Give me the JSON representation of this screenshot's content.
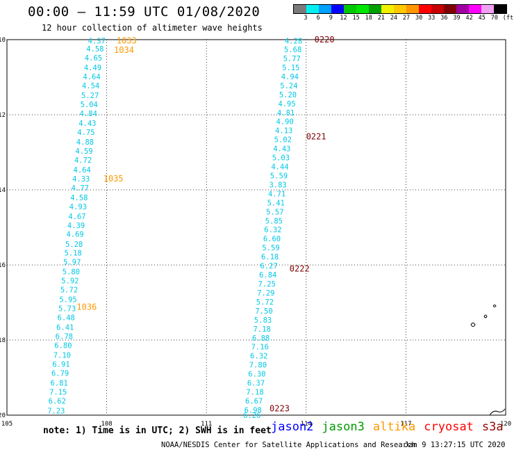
{
  "header": {
    "title": "00:00 – 11:59 UTC 01/08/2020",
    "subtitle": "12 hour collection of altimeter wave heights"
  },
  "colorbar": {
    "colors": [
      "#7a7a7a",
      "#00f0f0",
      "#00a0ff",
      "#0000ff",
      "#00c800",
      "#00e600",
      "#00a000",
      "#f0f000",
      "#ffc800",
      "#ff9600",
      "#ff0000",
      "#c80000",
      "#800000",
      "#a000a0",
      "#ff00ff",
      "#f0a0f0",
      "#000000"
    ],
    "labels": [
      "3",
      "6",
      "9",
      "12",
      "15",
      "18",
      "21",
      "24",
      "27",
      "30",
      "33",
      "36",
      "39",
      "42",
      "45",
      "70",
      "(ft)"
    ]
  },
  "chart_data": {
    "type": "scatter",
    "xlim": [
      105,
      120
    ],
    "ylim": [
      -20,
      -10
    ],
    "xticks": [
      105,
      108,
      111,
      114,
      117,
      120
    ],
    "yticks": [
      -10,
      -12,
      -14,
      -16,
      -18,
      -20
    ],
    "xtick_labels": [
      "105",
      "108",
      "111",
      "114",
      "117",
      "120"
    ],
    "ytick_labels": [
      "-10",
      "-12",
      "-14",
      "-16",
      "-18",
      "-20"
    ],
    "grid": true,
    "series": [
      {
        "name": "altika",
        "color": "#00c8e6",
        "label_color": "#ff9900",
        "points": [
          {
            "x": 107.7,
            "y": -10.03,
            "v": "4.37"
          },
          {
            "x": 107.65,
            "y": -10.24,
            "v": "4.58"
          },
          {
            "x": 107.6,
            "y": -10.48,
            "v": "4.65"
          },
          {
            "x": 107.58,
            "y": -10.74,
            "v": "4.49"
          },
          {
            "x": 107.55,
            "y": -10.98,
            "v": "4.64"
          },
          {
            "x": 107.52,
            "y": -11.22,
            "v": "4.54"
          },
          {
            "x": 107.5,
            "y": -11.48,
            "v": "5.27"
          },
          {
            "x": 107.47,
            "y": -11.72,
            "v": "5.04"
          },
          {
            "x": 107.45,
            "y": -11.96,
            "v": "4.84"
          },
          {
            "x": 107.42,
            "y": -12.22,
            "v": "4.43"
          },
          {
            "x": 107.38,
            "y": -12.46,
            "v": "4.75"
          },
          {
            "x": 107.35,
            "y": -12.72,
            "v": "4.88"
          },
          {
            "x": 107.32,
            "y": -12.96,
            "v": "4.59"
          },
          {
            "x": 107.29,
            "y": -13.2,
            "v": "4.72"
          },
          {
            "x": 107.26,
            "y": -13.46,
            "v": "4.64"
          },
          {
            "x": 107.23,
            "y": -13.7,
            "v": "4.33"
          },
          {
            "x": 107.2,
            "y": -13.94,
            "v": "4.77"
          },
          {
            "x": 107.17,
            "y": -14.2,
            "v": "4.58"
          },
          {
            "x": 107.14,
            "y": -14.44,
            "v": "4.93"
          },
          {
            "x": 107.11,
            "y": -14.7,
            "v": "4.67"
          },
          {
            "x": 107.08,
            "y": -14.94,
            "v": "4.39"
          },
          {
            "x": 107.05,
            "y": -15.18,
            "v": "4.69"
          },
          {
            "x": 107.02,
            "y": -15.44,
            "v": "5.28"
          },
          {
            "x": 106.99,
            "y": -15.68,
            "v": "5.18"
          },
          {
            "x": 106.96,
            "y": -15.92,
            "v": "5.97"
          },
          {
            "x": 106.93,
            "y": -16.18,
            "v": "5.80"
          },
          {
            "x": 106.9,
            "y": -16.42,
            "v": "5.92"
          },
          {
            "x": 106.87,
            "y": -16.66,
            "v": "5.72"
          },
          {
            "x": 106.84,
            "y": -16.92,
            "v": "5.95"
          },
          {
            "x": 106.81,
            "y": -17.16,
            "v": "5.73"
          },
          {
            "x": 106.78,
            "y": -17.4,
            "v": "6.48"
          },
          {
            "x": 106.75,
            "y": -17.66,
            "v": "6.41"
          },
          {
            "x": 106.72,
            "y": -17.9,
            "v": "6.78"
          },
          {
            "x": 106.69,
            "y": -18.14,
            "v": "6.80"
          },
          {
            "x": 106.66,
            "y": -18.4,
            "v": "7.10"
          },
          {
            "x": 106.63,
            "y": -18.64,
            "v": "6.91"
          },
          {
            "x": 106.6,
            "y": -18.88,
            "v": "6.79"
          },
          {
            "x": 106.57,
            "y": -19.14,
            "v": "6.81"
          },
          {
            "x": 106.54,
            "y": -19.38,
            "v": "7.15"
          },
          {
            "x": 106.51,
            "y": -19.62,
            "v": "6.62"
          },
          {
            "x": 106.48,
            "y": -19.88,
            "v": "7.23"
          }
        ],
        "time_labels": [
          {
            "x": 108.6,
            "y": -10.03,
            "t": "1033"
          },
          {
            "x": 108.52,
            "y": -10.28,
            "t": "1034"
          },
          {
            "x": 108.2,
            "y": -13.7,
            "t": "1035"
          },
          {
            "x": 107.4,
            "y": -17.12,
            "t": "1036"
          }
        ]
      },
      {
        "name": "cryosat",
        "color": "#00c8e6",
        "label_color": "#800000",
        "points": [
          {
            "x": 113.62,
            "y": -10.03,
            "v": "4.28"
          },
          {
            "x": 113.6,
            "y": -10.26,
            "v": "5.68"
          },
          {
            "x": 113.57,
            "y": -10.5,
            "v": "5.77"
          },
          {
            "x": 113.54,
            "y": -10.74,
            "v": "5.15"
          },
          {
            "x": 113.51,
            "y": -10.98,
            "v": "4.94"
          },
          {
            "x": 113.48,
            "y": -11.22,
            "v": "5.24"
          },
          {
            "x": 113.45,
            "y": -11.46,
            "v": "5.20"
          },
          {
            "x": 113.42,
            "y": -11.7,
            "v": "4.95"
          },
          {
            "x": 113.39,
            "y": -11.94,
            "v": "4.81"
          },
          {
            "x": 113.36,
            "y": -12.18,
            "v": "4.90"
          },
          {
            "x": 113.33,
            "y": -12.42,
            "v": "4.13"
          },
          {
            "x": 113.3,
            "y": -12.66,
            "v": "5.02"
          },
          {
            "x": 113.27,
            "y": -12.9,
            "v": "4.43"
          },
          {
            "x": 113.24,
            "y": -13.14,
            "v": "5.03"
          },
          {
            "x": 113.21,
            "y": -13.38,
            "v": "4.44"
          },
          {
            "x": 113.18,
            "y": -13.62,
            "v": "5.59"
          },
          {
            "x": 113.15,
            "y": -13.86,
            "v": "3.83"
          },
          {
            "x": 113.12,
            "y": -14.1,
            "v": "4.71"
          },
          {
            "x": 113.09,
            "y": -14.34,
            "v": "5.41"
          },
          {
            "x": 113.06,
            "y": -14.58,
            "v": "5.57"
          },
          {
            "x": 113.03,
            "y": -14.82,
            "v": "5.85"
          },
          {
            "x": 113.0,
            "y": -15.06,
            "v": "6.32"
          },
          {
            "x": 112.97,
            "y": -15.3,
            "v": "6.60"
          },
          {
            "x": 112.94,
            "y": -15.54,
            "v": "5.59"
          },
          {
            "x": 112.91,
            "y": -15.78,
            "v": "6.18"
          },
          {
            "x": 112.88,
            "y": -16.02,
            "v": "6.27"
          },
          {
            "x": 112.85,
            "y": -16.26,
            "v": "6.84"
          },
          {
            "x": 112.82,
            "y": -16.5,
            "v": "7.25"
          },
          {
            "x": 112.79,
            "y": -16.74,
            "v": "7.29"
          },
          {
            "x": 112.76,
            "y": -16.98,
            "v": "5.72"
          },
          {
            "x": 112.73,
            "y": -17.22,
            "v": "7.50"
          },
          {
            "x": 112.7,
            "y": -17.46,
            "v": "5.83"
          },
          {
            "x": 112.67,
            "y": -17.7,
            "v": "7.18"
          },
          {
            "x": 112.64,
            "y": -17.94,
            "v": "6.88"
          },
          {
            "x": 112.61,
            "y": -18.18,
            "v": "7.16"
          },
          {
            "x": 112.58,
            "y": -18.42,
            "v": "6.32"
          },
          {
            "x": 112.55,
            "y": -18.66,
            "v": "7.80"
          },
          {
            "x": 112.52,
            "y": -18.9,
            "v": "6.30"
          },
          {
            "x": 112.49,
            "y": -19.14,
            "v": "6.37"
          },
          {
            "x": 112.46,
            "y": -19.38,
            "v": "7.18"
          },
          {
            "x": 112.43,
            "y": -19.62,
            "v": "6.67"
          },
          {
            "x": 112.4,
            "y": -19.86,
            "v": "6.98"
          },
          {
            "x": 112.37,
            "y": -20.0,
            "v": "6.26"
          }
        ],
        "time_labels": [
          {
            "x": 114.55,
            "y": -10.0,
            "t": "0220"
          },
          {
            "x": 114.3,
            "y": -12.58,
            "t": "0221"
          },
          {
            "x": 113.8,
            "y": -16.1,
            "t": "0222"
          },
          {
            "x": 113.2,
            "y": -19.82,
            "t": "0223"
          }
        ]
      }
    ]
  },
  "legend": {
    "note": "note: 1) Time is in UTC; 2) SWH is in feet",
    "satellites": [
      {
        "name": "jason2",
        "color": "#0000ff"
      },
      {
        "name": "jason3",
        "color": "#009900"
      },
      {
        "name": "altika",
        "color": "#ff9900"
      },
      {
        "name": "cryosat",
        "color": "#ff0000"
      },
      {
        "name": "s3a",
        "color": "#990000"
      }
    ]
  },
  "footer": {
    "credit": "NOAA/NESDIS Center for Satellite Applications and Research",
    "date": "Jan  9 13:27:15 UTC 2020"
  }
}
